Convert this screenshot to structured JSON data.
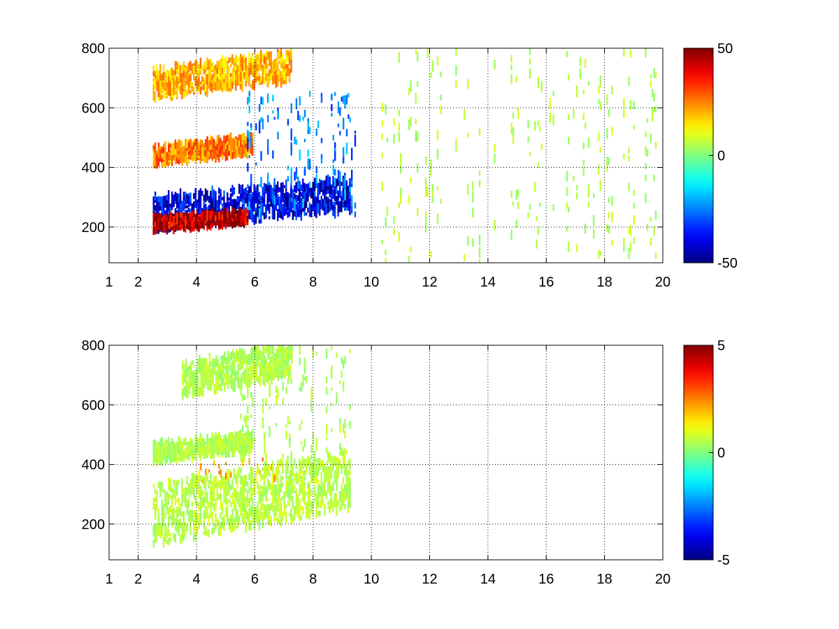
{
  "chart_data": [
    {
      "type": "heatmap",
      "title": "",
      "xlabel": "",
      "ylabel": "",
      "grid": true,
      "colormap": "jet",
      "xlim": [
        1,
        20
      ],
      "ylim": [
        80,
        800
      ],
      "xticks": [
        1,
        2,
        4,
        6,
        8,
        10,
        12,
        14,
        16,
        18,
        20
      ],
      "yticks": [
        200,
        400,
        600,
        800
      ],
      "colorbar": {
        "limits": [
          -50,
          50
        ],
        "ticks": [
          50,
          0,
          -50
        ],
        "placement": "right"
      },
      "features": [
        {
          "kind": "band",
          "x_start": 2.5,
          "x_end": 9.3,
          "y_start": 190,
          "y_end": 300,
          "value": -40
        },
        {
          "kind": "band",
          "x_start": 2.5,
          "x_end": 5.8,
          "y_start": 190,
          "y_end": 230,
          "value": 45
        },
        {
          "kind": "band",
          "x_start": 2.5,
          "x_end": 6.0,
          "y_start": 410,
          "y_end": 470,
          "value": 25
        },
        {
          "kind": "band",
          "x_start": 2.5,
          "x_end": 7.3,
          "y_start": 630,
          "y_end": 730,
          "value": 20
        },
        {
          "kind": "region",
          "x_start": 5.5,
          "x_end": 9.5,
          "y_start": 240,
          "y_end": 650,
          "value": -25
        },
        {
          "kind": "noise",
          "x_start": 10,
          "x_end": 20,
          "y_start": 80,
          "y_end": 800,
          "value": 5
        }
      ]
    },
    {
      "type": "heatmap",
      "title": "",
      "xlabel": "",
      "ylabel": "",
      "grid": true,
      "colormap": "jet",
      "xlim": [
        1,
        20
      ],
      "ylim": [
        80,
        800
      ],
      "xticks": [
        1,
        2,
        4,
        6,
        8,
        10,
        12,
        14,
        16,
        18,
        20
      ],
      "yticks": [
        200,
        400,
        600,
        800
      ],
      "colorbar": {
        "limits": [
          -5,
          5
        ],
        "ticks": [
          5,
          0,
          -5
        ],
        "placement": "right"
      },
      "features": [
        {
          "kind": "band",
          "x_start": 2.5,
          "x_end": 9.3,
          "y_start": 130,
          "y_end": 330,
          "value": 0.6
        },
        {
          "kind": "band",
          "x_start": 2.5,
          "x_end": 6.0,
          "y_start": 410,
          "y_end": 470,
          "value": 0.5
        },
        {
          "kind": "band",
          "x_start": 3.5,
          "x_end": 7.3,
          "y_start": 630,
          "y_end": 740,
          "value": 0.5
        },
        {
          "kind": "region",
          "x_start": 5.5,
          "x_end": 9.3,
          "y_start": 300,
          "y_end": 800,
          "value": 0.5
        },
        {
          "kind": "spots",
          "x_start": 4,
          "x_end": 7,
          "y_start": 340,
          "y_end": 420,
          "value": 2
        }
      ]
    }
  ]
}
